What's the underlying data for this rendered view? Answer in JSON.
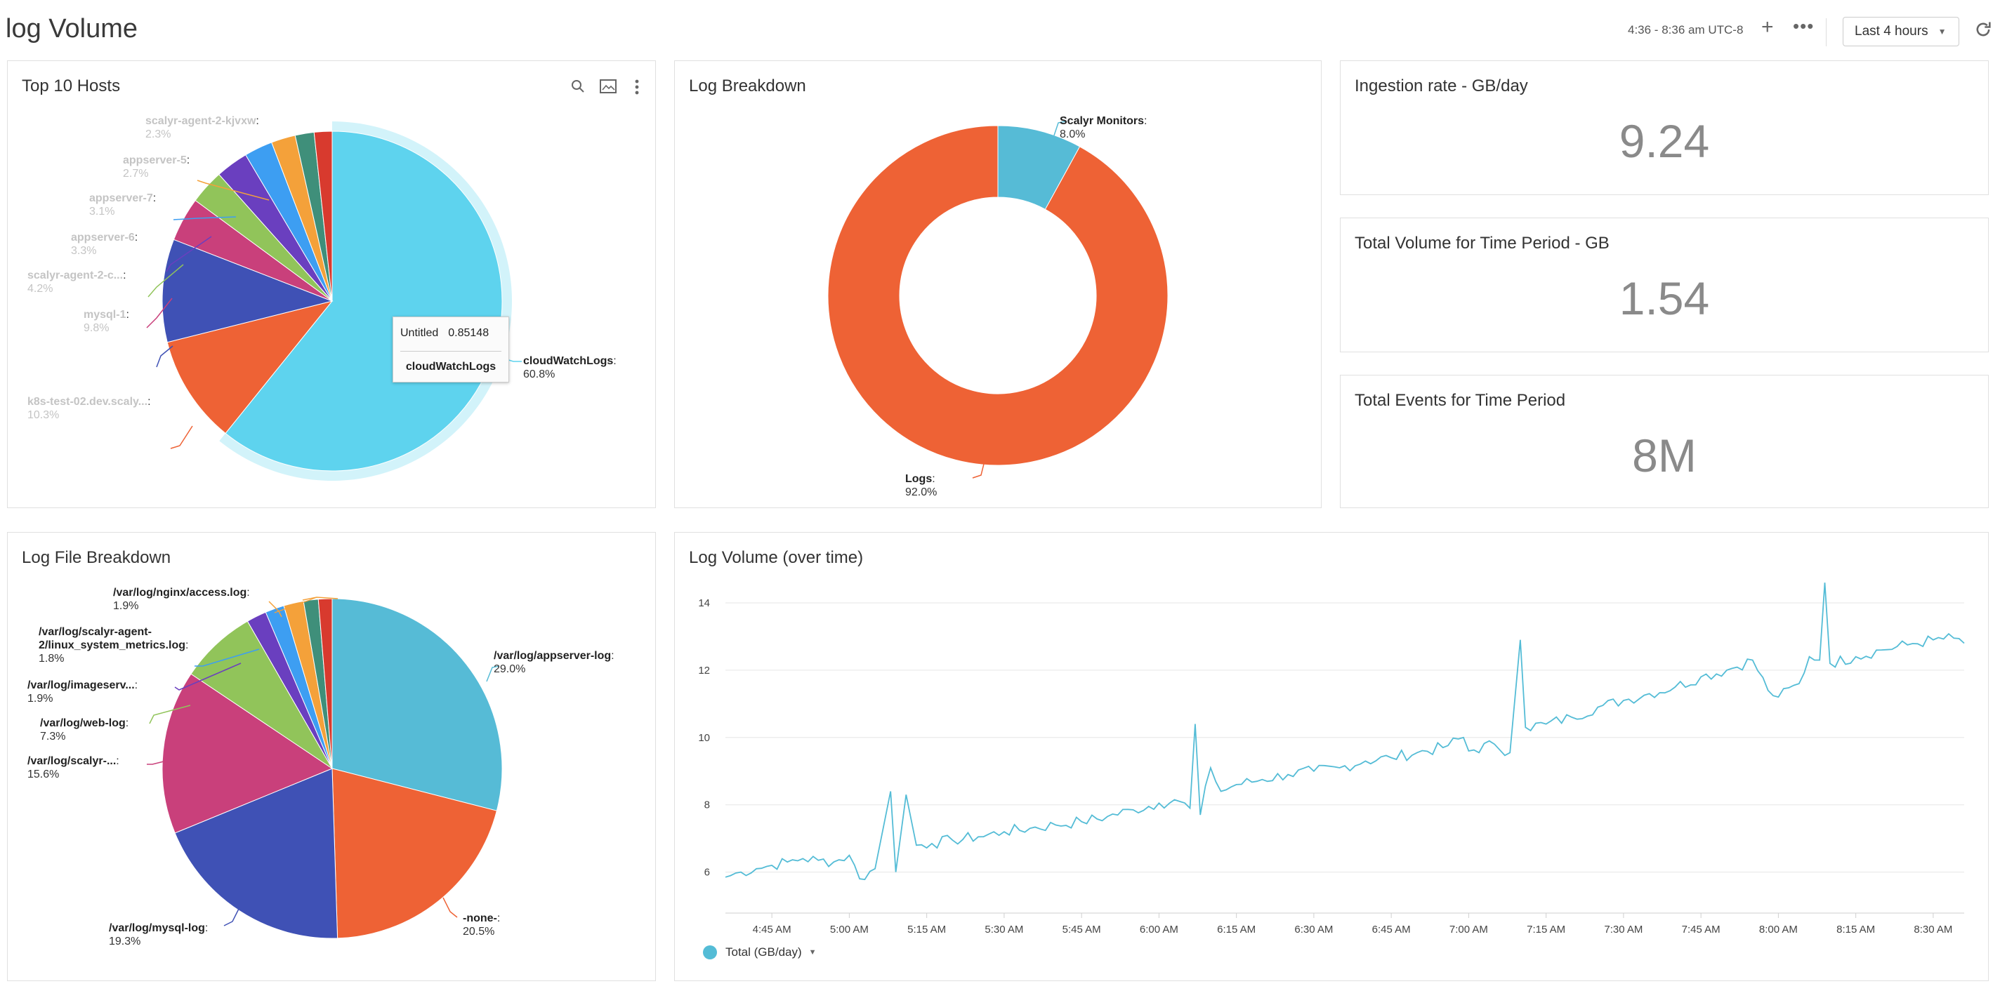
{
  "header": {
    "title": "log Volume",
    "time_range": "4:36 - 8:36 am UTC-8",
    "plus_icon": "+",
    "more_icon": "•••",
    "range_button": "Last 4 hours",
    "refresh_icon": "refresh-icon"
  },
  "panels": {
    "top_hosts": {
      "title": "Top 10 Hosts",
      "icons": [
        "search-icon",
        "image-icon",
        "more-vertical-icon"
      ]
    },
    "log_breakdown": {
      "title": "Log Breakdown"
    },
    "ingestion": {
      "title": "Ingestion rate - GB/day",
      "value": "9.24"
    },
    "total_volume": {
      "title": "Total Volume for Time Period - GB",
      "value": "1.54"
    },
    "total_events": {
      "title": "Total Events for Time Period",
      "value": "8M"
    },
    "file_breakdown": {
      "title": "Log File Breakdown"
    },
    "volume_over_time": {
      "title": "Log Volume (over time)",
      "legend": "Total (GB/day)"
    }
  },
  "tooltip": {
    "series": "Untitled",
    "value": "0.85148",
    "label": "cloudWatchLogs"
  },
  "chart_data": [
    {
      "type": "pie",
      "title": "Top 10 Hosts",
      "slices": [
        {
          "name": "cloudWatchLogs",
          "percent": 60.8,
          "label": "cloudWatchLogs",
          "pct_label": "60.8%",
          "color": "#5ed3ee"
        },
        {
          "name": "k8s-test-02.dev.scaly...",
          "percent": 10.3,
          "label": "k8s-test-02.dev.scaly...",
          "pct_label": "10.3%",
          "color": "#ee6235"
        },
        {
          "name": "mysql-1",
          "percent": 9.8,
          "label": "mysql-1",
          "pct_label": "9.8%",
          "color": "#3f51b5"
        },
        {
          "name": "scalyr-agent-2-c...",
          "percent": 4.2,
          "label": "scalyr-agent-2-c...",
          "pct_label": "4.2%",
          "color": "#c9407b"
        },
        {
          "name": "appserver-6",
          "percent": 3.3,
          "label": "appserver-6",
          "pct_label": "3.3%",
          "color": "#91c45a"
        },
        {
          "name": "appserver-7",
          "percent": 3.1,
          "label": "appserver-7",
          "pct_label": "3.1%",
          "color": "#6a3fbf"
        },
        {
          "name": "appserver-5",
          "percent": 2.7,
          "label": "appserver-5",
          "pct_label": "2.7%",
          "color": "#3d9ef2"
        },
        {
          "name": "scalyr-agent-2-kjvxw",
          "percent": 2.3,
          "label": "scalyr-agent-2-kjvxw",
          "pct_label": "2.3%",
          "color": "#f4a13a"
        },
        {
          "name": "slice-9",
          "percent": 1.8,
          "color": "#3f8f7a"
        },
        {
          "name": "slice-10",
          "percent": 1.7,
          "color": "#d83a2e"
        }
      ]
    },
    {
      "type": "pie",
      "title": "Log Breakdown",
      "donut": true,
      "slices": [
        {
          "name": "Scalyr Monitors",
          "percent": 8.0,
          "label": "Scalyr Monitors",
          "pct_label": "8.0%",
          "color": "#56bbd6"
        },
        {
          "name": "Logs",
          "percent": 92.0,
          "label": "Logs",
          "pct_label": "92.0%",
          "color": "#ee6235"
        }
      ]
    },
    {
      "type": "pie",
      "title": "Log File Breakdown",
      "slices": [
        {
          "name": "/var/log/appserver-log",
          "percent": 29.0,
          "label": "/var/log/appserver-log",
          "pct_label": "29.0%",
          "color": "#56bbd6"
        },
        {
          "name": "-none-",
          "percent": 20.5,
          "label": "-none-",
          "pct_label": "20.5%",
          "color": "#ee6235"
        },
        {
          "name": "/var/log/mysql-log",
          "percent": 19.3,
          "label": "/var/log/mysql-log",
          "pct_label": "19.3%",
          "color": "#3f51b5"
        },
        {
          "name": "/var/log/scalyr-...",
          "percent": 15.6,
          "label": "/var/log/scalyr-...",
          "pct_label": "15.6%",
          "color": "#c9407b"
        },
        {
          "name": "/var/log/web-log",
          "percent": 7.3,
          "label": "/var/log/web-log",
          "pct_label": "7.3%",
          "color": "#91c45a"
        },
        {
          "name": "/var/log/imageserv...",
          "percent": 1.9,
          "label": "/var/log/imageserv...",
          "pct_label": "1.9%",
          "color": "#6a3fbf"
        },
        {
          "name": "/var/log/scalyr-agent-2/linux_system_metrics.log",
          "percent": 1.8,
          "label": "/var/log/scalyr-agent-2/linux_system_metrics.log",
          "pct_label": "1.8%",
          "color": "#3d9ef2"
        },
        {
          "name": "/var/log/nginx/access.log",
          "percent": 1.9,
          "label": "/var/log/nginx/access.log",
          "pct_label": "1.9%",
          "color": "#f4a13a"
        },
        {
          "name": "slice-9",
          "percent": 1.4,
          "color": "#3f8f7a"
        },
        {
          "name": "slice-10",
          "percent": 1.3,
          "color": "#d83a2e"
        }
      ]
    },
    {
      "type": "line",
      "title": "Log Volume (over time)",
      "x_ticks": [
        "4:45 AM",
        "5:00 AM",
        "5:15 AM",
        "5:30 AM",
        "5:45 AM",
        "6:00 AM",
        "6:15 AM",
        "6:30 AM",
        "6:45 AM",
        "7:00 AM",
        "7:15 AM",
        "7:30 AM",
        "7:45 AM",
        "8:00 AM",
        "8:15 AM",
        "8:30 AM"
      ],
      "y_ticks": [
        6,
        8,
        10,
        12,
        14
      ],
      "ylim": [
        5.2,
        15
      ],
      "grid": true,
      "legend": "bottom-left",
      "series": [
        {
          "name": "Total (GB/day)",
          "color": "#54bcd6",
          "points": [
            [
              "4:36 AM",
              5.85
            ],
            [
              "4:39 AM",
              6.0
            ],
            [
              "4:42 AM",
              6.1
            ],
            [
              "4:45 AM",
              6.2
            ],
            [
              "4:48 AM",
              6.3
            ],
            [
              "4:51 AM",
              6.4
            ],
            [
              "4:54 AM",
              6.35
            ],
            [
              "4:57 AM",
              6.3
            ],
            [
              "5:00 AM",
              6.5
            ],
            [
              "5:02 AM",
              5.8
            ],
            [
              "5:05 AM",
              6.1
            ],
            [
              "5:08 AM",
              8.4
            ],
            [
              "5:09 AM",
              6.0
            ],
            [
              "5:11 AM",
              8.3
            ],
            [
              "5:13 AM",
              6.8
            ],
            [
              "5:16 AM",
              6.85
            ],
            [
              "5:20 AM",
              6.95
            ],
            [
              "5:25 AM",
              7.05
            ],
            [
              "5:30 AM",
              7.2
            ],
            [
              "5:35 AM",
              7.3
            ],
            [
              "5:40 AM",
              7.4
            ],
            [
              "5:45 AM",
              7.5
            ],
            [
              "5:50 AM",
              7.65
            ],
            [
              "5:55 AM",
              7.85
            ],
            [
              "6:00 AM",
              8.05
            ],
            [
              "6:04 AM",
              8.1
            ],
            [
              "6:06 AM",
              7.9
            ],
            [
              "6:07 AM",
              10.4
            ],
            [
              "6:08 AM",
              7.7
            ],
            [
              "6:10 AM",
              9.1
            ],
            [
              "6:12 AM",
              8.4
            ],
            [
              "6:15 AM",
              8.6
            ],
            [
              "6:20 AM",
              8.75
            ],
            [
              "6:25 AM",
              8.9
            ],
            [
              "6:30 AM",
              9.0
            ],
            [
              "6:35 AM",
              9.1
            ],
            [
              "6:40 AM",
              9.3
            ],
            [
              "6:45 AM",
              9.4
            ],
            [
              "6:50 AM",
              9.55
            ],
            [
              "6:55 AM",
              9.7
            ],
            [
              "6:59 AM",
              10.0
            ],
            [
              "7:00 AM",
              9.6
            ],
            [
              "7:05 AM",
              9.8
            ],
            [
              "7:08 AM",
              9.55
            ],
            [
              "7:10 AM",
              12.9
            ],
            [
              "7:11 AM",
              10.3
            ],
            [
              "7:15 AM",
              10.4
            ],
            [
              "7:20 AM",
              10.6
            ],
            [
              "7:25 AM",
              10.9
            ],
            [
              "7:30 AM",
              11.1
            ],
            [
              "7:35 AM",
              11.3
            ],
            [
              "7:40 AM",
              11.5
            ],
            [
              "7:45 AM",
              11.8
            ],
            [
              "7:50 AM",
              12.0
            ],
            [
              "7:55 AM",
              12.3
            ],
            [
              "7:58 AM",
              11.4
            ],
            [
              "8:00 AM",
              11.2
            ],
            [
              "8:04 AM",
              11.6
            ],
            [
              "8:06 AM",
              12.4
            ],
            [
              "8:08 AM",
              12.3
            ],
            [
              "8:09 AM",
              14.6
            ],
            [
              "8:10 AM",
              12.2
            ],
            [
              "8:15 AM",
              12.4
            ],
            [
              "8:20 AM",
              12.6
            ],
            [
              "8:25 AM",
              12.75
            ],
            [
              "8:30 AM",
              12.9
            ],
            [
              "8:34 AM",
              12.95
            ],
            [
              "8:36 AM",
              12.8
            ]
          ]
        }
      ]
    }
  ]
}
